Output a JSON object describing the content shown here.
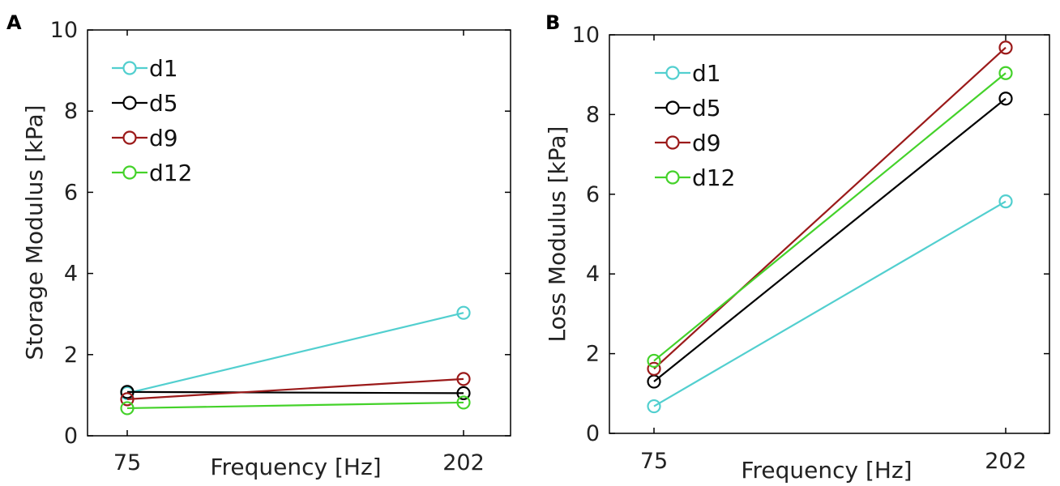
{
  "chart_data": [
    {
      "panel": "A",
      "type": "line",
      "x": [
        75,
        202
      ],
      "xticks": [
        "75",
        "202"
      ],
      "xlabel": "Frequency [Hz]",
      "ylabel": "Storage Modulus [kPa]",
      "ylim": [
        0,
        10
      ],
      "yticks": [
        0,
        2,
        4,
        6,
        8,
        10
      ],
      "grid": false,
      "legend": "top-left",
      "series": [
        {
          "name": "d1",
          "color": "#52cfcf",
          "values": [
            1.05,
            3.03
          ]
        },
        {
          "name": "d5",
          "color": "#000000",
          "values": [
            1.08,
            1.05
          ]
        },
        {
          "name": "d9",
          "color": "#9b1a1a",
          "values": [
            0.9,
            1.4
          ]
        },
        {
          "name": "d12",
          "color": "#44d22a",
          "values": [
            0.68,
            0.82
          ]
        }
      ]
    },
    {
      "panel": "B",
      "type": "line",
      "x": [
        75,
        202
      ],
      "xticks": [
        "75",
        "202"
      ],
      "xlabel": "Frequency [Hz]",
      "ylabel": "Loss Modulus [kPa]",
      "ylim": [
        0,
        10
      ],
      "yticks": [
        0,
        2,
        4,
        6,
        8,
        10
      ],
      "grid": false,
      "legend": "top-left",
      "series": [
        {
          "name": "d1",
          "color": "#52cfcf",
          "values": [
            0.68,
            5.82
          ]
        },
        {
          "name": "d5",
          "color": "#000000",
          "values": [
            1.3,
            8.4
          ]
        },
        {
          "name": "d9",
          "color": "#9b1a1a",
          "values": [
            1.62,
            9.68
          ]
        },
        {
          "name": "d12",
          "color": "#44d22a",
          "values": [
            1.82,
            9.04
          ]
        }
      ]
    }
  ]
}
